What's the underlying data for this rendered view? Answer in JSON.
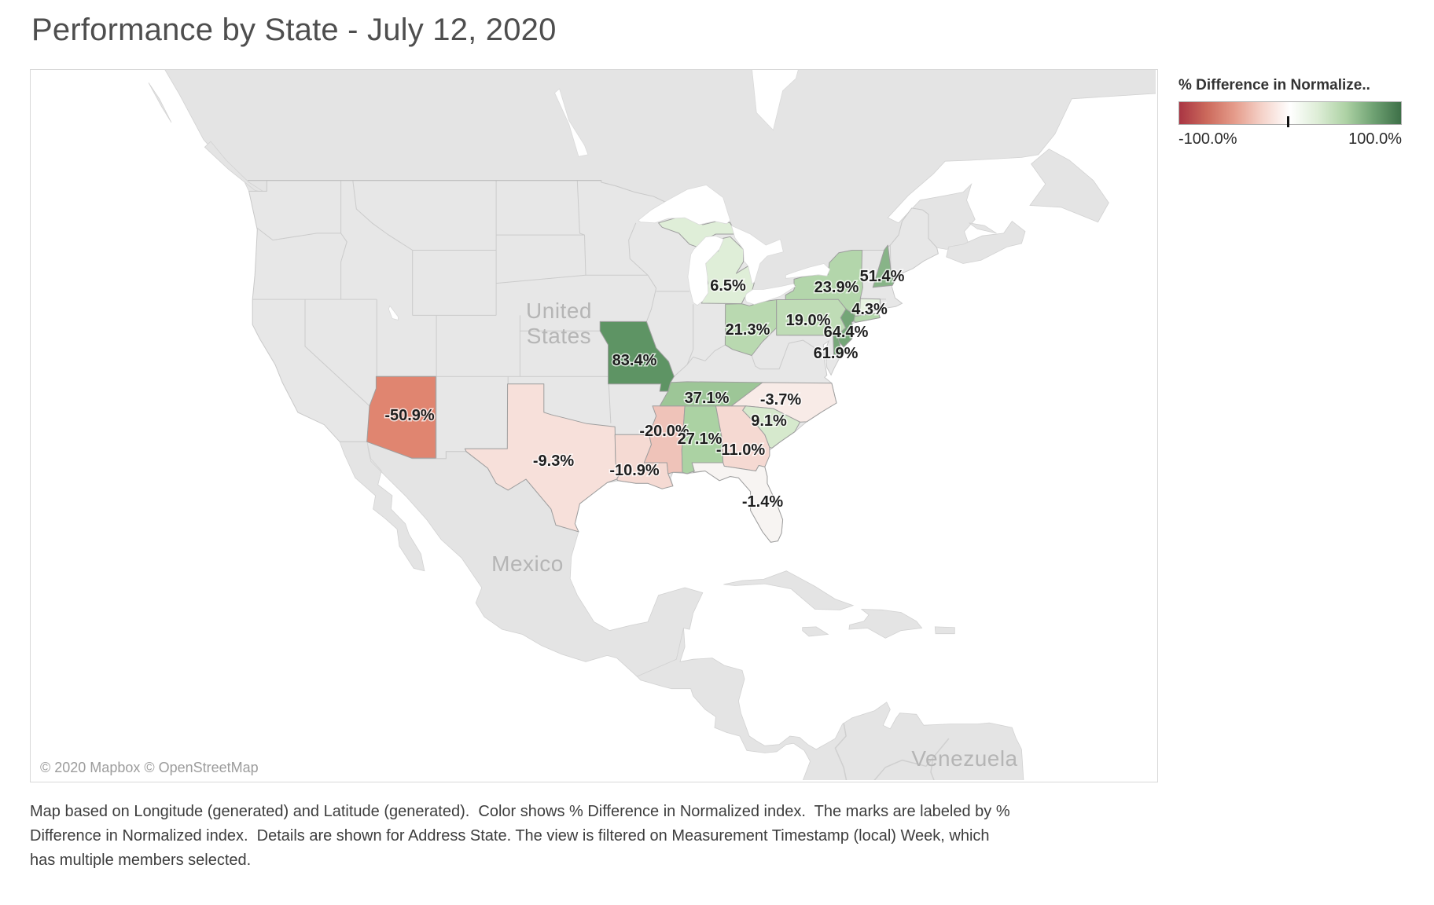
{
  "title": "Performance by State - July 12, 2020",
  "legend": {
    "title": "% Difference in Normalize..",
    "min_label": "-100.0%",
    "max_label": "100.0%",
    "gradient": [
      "#a93543",
      "#cc6a5c",
      "#e59c8b",
      "#f5d3ca",
      "#ffffff",
      "#ddedd6",
      "#aed2a5",
      "#6fa273",
      "#3e7048"
    ]
  },
  "map": {
    "attribution": "© 2020 Mapbox © OpenStreetMap",
    "region_labels": [
      {
        "id": "united-states",
        "lines": [
          "United",
          "States"
        ]
      },
      {
        "id": "mexico",
        "lines": [
          "Mexico"
        ]
      },
      {
        "id": "venezuela",
        "lines": [
          "Venezuela"
        ]
      }
    ],
    "states": [
      {
        "id": "AZ",
        "name": "Arizona",
        "label": "-50.9%",
        "value": -50.9,
        "color": "#e08570"
      },
      {
        "id": "TX",
        "name": "Texas",
        "label": "-9.3%",
        "value": -9.3,
        "color": "#f7e0da"
      },
      {
        "id": "LA",
        "name": "Louisiana",
        "label": "-10.9%",
        "value": -10.9,
        "color": "#f5dad3"
      },
      {
        "id": "MS",
        "name": "Mississippi",
        "label": "-20.0%",
        "value": -20.0,
        "color": "#efc3b9"
      },
      {
        "id": "AL",
        "name": "Alabama",
        "label": "27.1%",
        "value": 27.1,
        "color": "#abd2a3"
      },
      {
        "id": "GA",
        "name": "Georgia",
        "label": "-11.0%",
        "value": -11.0,
        "color": "#f5d9d2"
      },
      {
        "id": "FL",
        "name": "Florida",
        "label": "-1.4%",
        "value": -1.4,
        "color": "#f7f4f2"
      },
      {
        "id": "NC",
        "name": "North Carolina",
        "label": "-3.7%",
        "value": -3.7,
        "color": "#f8ebe7"
      },
      {
        "id": "SC",
        "name": "South Carolina",
        "label": "9.1%",
        "value": 9.1,
        "color": "#d6e9cd"
      },
      {
        "id": "TN",
        "name": "Tennessee",
        "label": "37.1%",
        "value": 37.1,
        "color": "#9dc697"
      },
      {
        "id": "MO",
        "name": "Missouri",
        "label": "83.4%",
        "value": 83.4,
        "color": "#5e9464"
      },
      {
        "id": "OH",
        "name": "Ohio",
        "label": "21.3%",
        "value": 21.3,
        "color": "#b9d9b0"
      },
      {
        "id": "MI",
        "name": "Michigan",
        "label": "6.5%",
        "value": 6.5,
        "color": "#dfeed8"
      },
      {
        "id": "PA",
        "name": "Pennsylvania",
        "label": "19.0%",
        "value": 19.0,
        "color": "#bfdcb6"
      },
      {
        "id": "NY",
        "name": "New York",
        "label": "23.9%",
        "value": 23.9,
        "color": "#b3d6ab"
      },
      {
        "id": "NJ",
        "name": "New Jersey",
        "label": "64.4%",
        "value": 64.4,
        "color": "#74a677"
      },
      {
        "id": "DE",
        "name": "Delaware",
        "label": "61.9%",
        "value": 61.9,
        "color": "#78a87a"
      },
      {
        "id": "CT",
        "name": "Connecticut",
        "label": "4.3%",
        "value": 4.3,
        "color": "#e6f2e0"
      },
      {
        "id": "NH",
        "name": "New Hampshire",
        "label": "51.4%",
        "value": 51.4,
        "color": "#88b488"
      }
    ]
  },
  "caption": "Map based on Longitude (generated) and Latitude (generated).  Color shows % Difference in Normalized index.  The marks are labeled by %\nDifference in Normalized index.  Details are shown for Address State. The view is filtered on Measurement Timestamp (local) Week, which\nhas multiple members selected.",
  "chart_data": {
    "type": "choropleth",
    "title": "Performance by State - July 12, 2020",
    "measure": "% Difference in Normalized index",
    "detail": "Address State",
    "categories": [
      "Missouri",
      "New Jersey",
      "Delaware",
      "New Hampshire",
      "Tennessee",
      "Alabama",
      "New York",
      "Ohio",
      "Pennsylvania",
      "South Carolina",
      "Michigan",
      "Connecticut",
      "Florida",
      "North Carolina",
      "Texas",
      "Louisiana",
      "Georgia",
      "Mississippi",
      "Arizona"
    ],
    "values": [
      83.4,
      64.4,
      61.9,
      51.4,
      37.1,
      27.1,
      23.9,
      21.3,
      19.0,
      9.1,
      6.5,
      4.3,
      -1.4,
      -3.7,
      -9.3,
      -10.9,
      -11.0,
      -20.0,
      -50.9
    ],
    "value_unit": "%",
    "color_scale": {
      "type": "diverging",
      "domain": [
        -100,
        100
      ],
      "negative_color": "#a93543",
      "mid_color": "#ffffff",
      "positive_color": "#3e7048"
    },
    "legend_position": "top-right",
    "region_annotations": [
      "United States",
      "Mexico",
      "Venezuela"
    ]
  }
}
